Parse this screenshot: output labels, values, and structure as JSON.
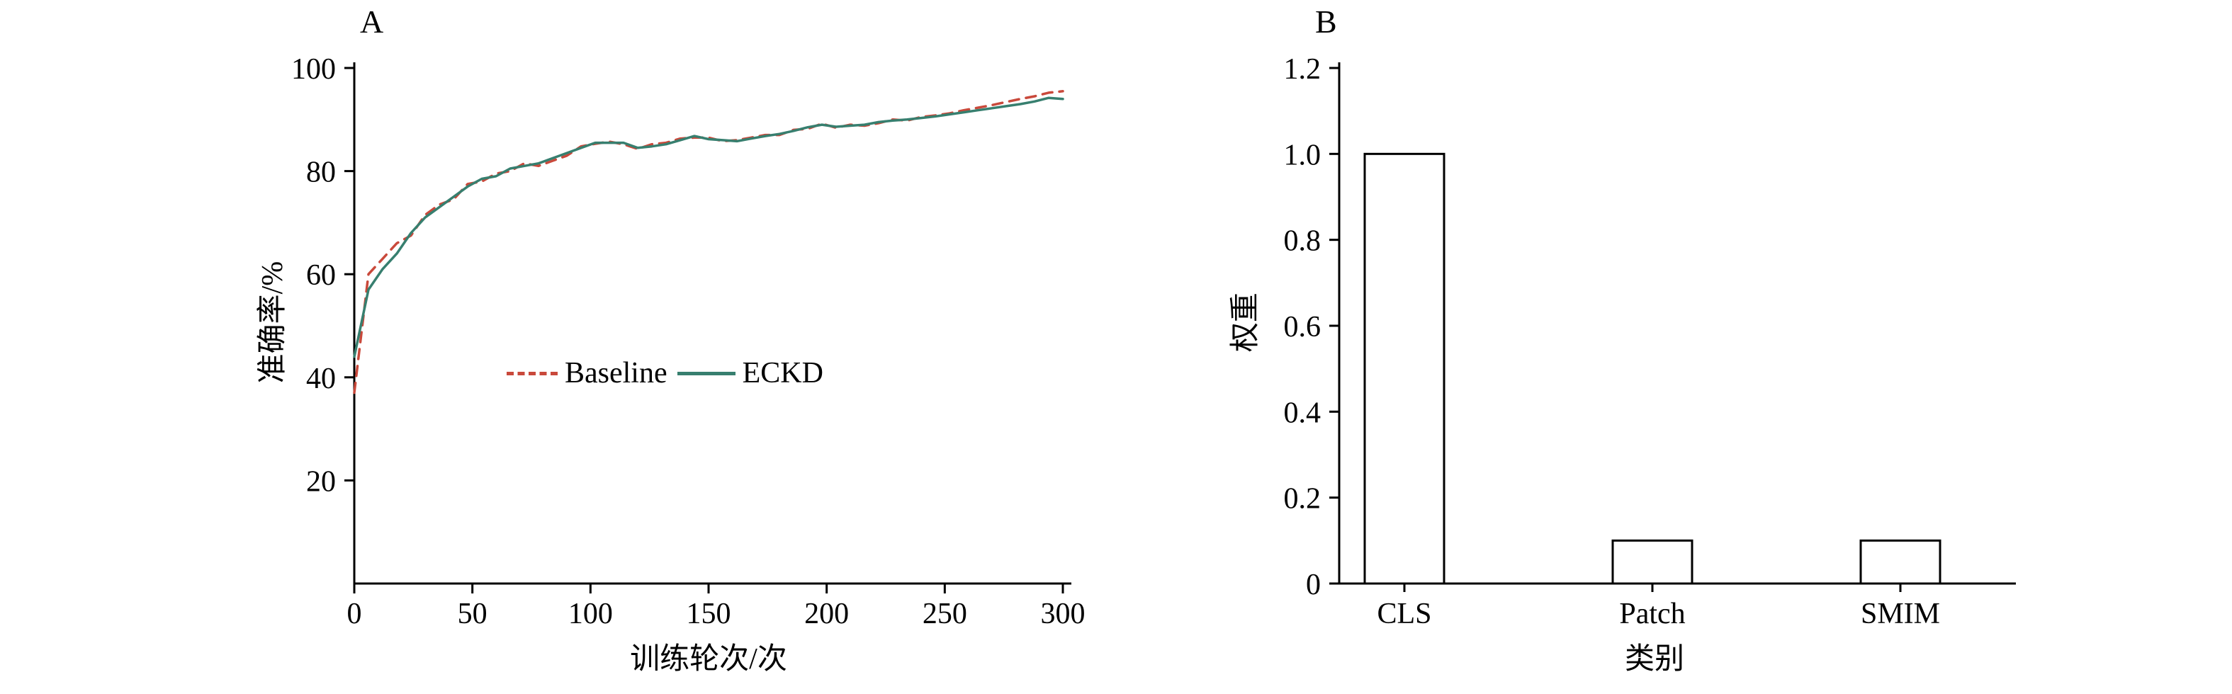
{
  "panels": [
    {
      "label": "A"
    },
    {
      "label": "B"
    }
  ],
  "colors": {
    "baseline": "#c9493b",
    "eckd": "#377f6f",
    "axis": "#000000",
    "background": "#ffffff",
    "bar_fill": "#ffffff",
    "bar_stroke": "#000000"
  },
  "chart_data": [
    {
      "type": "line",
      "panel": "A",
      "title": "",
      "xlabel": "训练轮次/次",
      "ylabel": "准确率/%",
      "xlim": [
        0,
        300
      ],
      "ylim": [
        0,
        100
      ],
      "xticks": [
        0,
        50,
        100,
        150,
        200,
        250,
        300
      ],
      "yticks": [
        20,
        40,
        60,
        80,
        100
      ],
      "grid": false,
      "legend_position": "inside-center",
      "x": [
        0,
        6,
        12,
        18,
        24,
        30,
        36,
        42,
        48,
        54,
        60,
        66,
        72,
        78,
        84,
        90,
        96,
        102,
        108,
        114,
        120,
        126,
        132,
        138,
        144,
        150,
        156,
        162,
        168,
        174,
        180,
        186,
        192,
        198,
        204,
        210,
        216,
        222,
        228,
        234,
        240,
        246,
        252,
        258,
        264,
        270,
        276,
        282,
        288,
        294,
        300
      ],
      "series": [
        {
          "name": "Baseline",
          "style": "dashed",
          "color": "#c9493b",
          "values": [
            37,
            60,
            63,
            66,
            67.5,
            71.5,
            73.5,
            74.5,
            77.5,
            78,
            79.5,
            80,
            81.5,
            81,
            82,
            83,
            84.8,
            85.3,
            85.7,
            85.2,
            84.3,
            85.2,
            85.5,
            86.3,
            86.5,
            86.5,
            85.8,
            86,
            86.5,
            87,
            87,
            88,
            88.2,
            89.2,
            88.4,
            89,
            88.8,
            89.3,
            90,
            89.8,
            90.5,
            90.8,
            91.2,
            91.8,
            92.3,
            92.8,
            93.4,
            94,
            94.5,
            95.2,
            95.5
          ]
        },
        {
          "name": "ECKD",
          "style": "solid",
          "color": "#377f6f",
          "values": [
            44,
            57,
            61,
            64,
            68,
            71,
            73,
            75,
            77,
            78.5,
            79,
            80.5,
            81,
            81.5,
            82.5,
            83.5,
            84.5,
            85.5,
            85.5,
            85.5,
            84.5,
            84.8,
            85.2,
            86,
            86.8,
            86.2,
            86,
            85.8,
            86.3,
            86.8,
            87.2,
            87.8,
            88.5,
            89,
            88.6,
            88.8,
            89,
            89.5,
            89.8,
            90,
            90.3,
            90.6,
            91,
            91.4,
            91.8,
            92.2,
            92.6,
            93,
            93.5,
            94.2,
            94
          ]
        }
      ]
    },
    {
      "type": "bar",
      "panel": "B",
      "title": "",
      "xlabel": "类别",
      "ylabel": "权重",
      "ylim": [
        0,
        1.2
      ],
      "yticks": [
        0,
        0.2,
        0.4,
        0.6,
        0.8,
        1.0,
        1.2
      ],
      "ytick_labels": [
        "0",
        "0.2",
        "0.4",
        "0.6",
        "0.8",
        "1.0",
        "1.2"
      ],
      "grid": false,
      "categories": [
        "CLS",
        "Patch",
        "SMIM"
      ],
      "values": [
        1.0,
        0.1,
        0.1
      ]
    }
  ]
}
